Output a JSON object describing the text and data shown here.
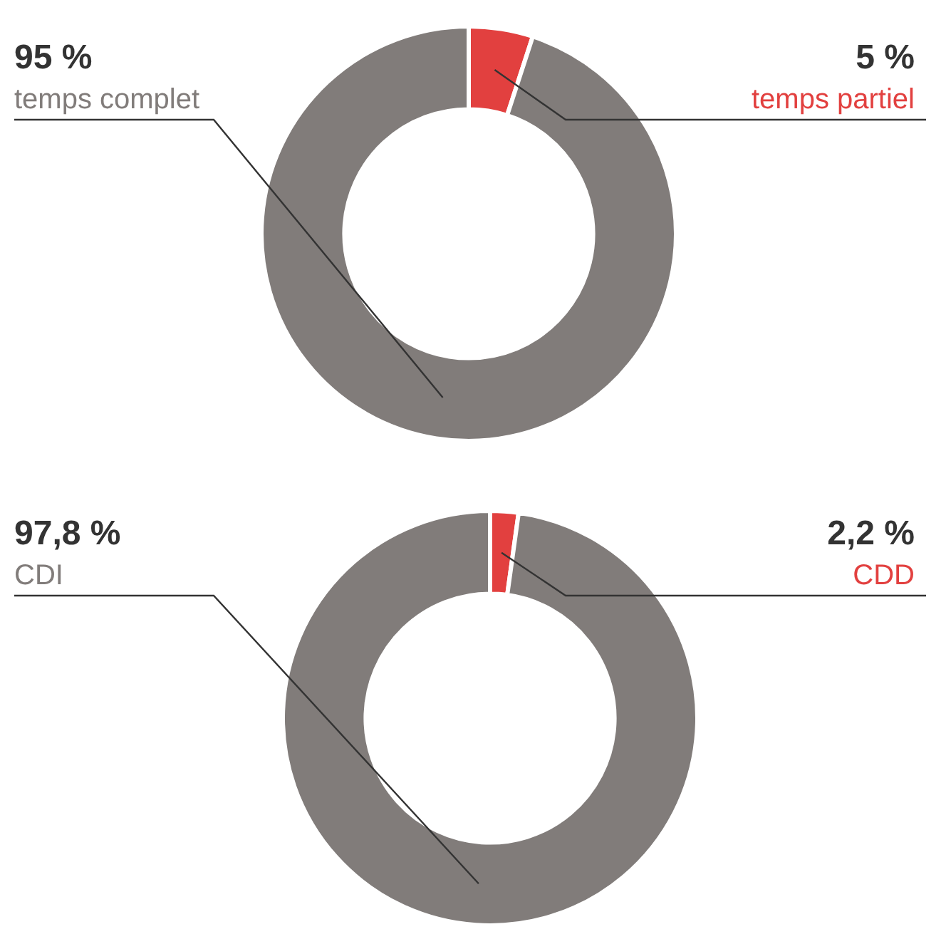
{
  "chart_data": [
    {
      "type": "donut",
      "categories": [
        "temps partiel",
        "temps complet"
      ],
      "values": [
        5,
        95
      ],
      "colors": [
        "#e2403f",
        "#817c7a"
      ],
      "value_labels": [
        "5 %",
        "95 %"
      ]
    },
    {
      "type": "donut",
      "categories": [
        "CDD",
        "CDI"
      ],
      "values": [
        2.2,
        97.8
      ],
      "colors": [
        "#e2403f",
        "#817c7a"
      ],
      "value_labels": [
        "2,2 %",
        "97,8 %"
      ]
    }
  ]
}
